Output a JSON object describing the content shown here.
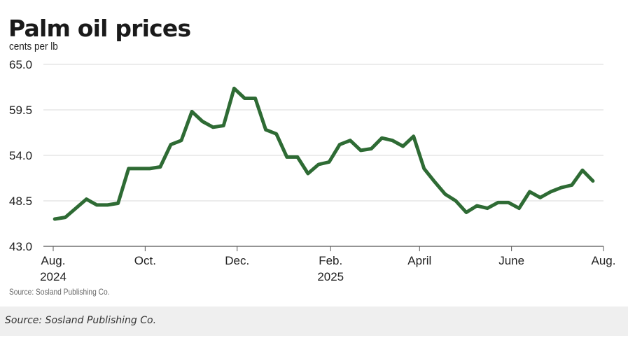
{
  "chart_data": {
    "type": "line",
    "title": "Palm oil prices",
    "ylabel": "cents per lb",
    "ylim": [
      43.0,
      65.0
    ],
    "yticks": [
      "65.0",
      "59.5",
      "54.0",
      "48.5",
      "43.0"
    ],
    "grid": true,
    "x_tick_labels": [
      {
        "line1": "Aug.",
        "line2": "2024"
      },
      {
        "line1": "Oct.",
        "line2": ""
      },
      {
        "line1": "Dec.",
        "line2": ""
      },
      {
        "line1": "Feb.",
        "line2": "2025"
      },
      {
        "line1": "April",
        "line2": ""
      },
      {
        "line1": "June",
        "line2": ""
      },
      {
        "line1": "Aug.",
        "line2": ""
      }
    ],
    "x_range": [
      "2024-08-01",
      "2025-08-01"
    ],
    "series": [
      {
        "color": "#2e6b34",
        "points": [
          [
            "2024-08-02",
            46.3
          ],
          [
            "2024-08-09",
            46.5
          ],
          [
            "2024-08-16",
            47.6
          ],
          [
            "2024-08-23",
            48.7
          ],
          [
            "2024-08-30",
            48.0
          ],
          [
            "2024-09-06",
            48.0
          ],
          [
            "2024-09-13",
            48.2
          ],
          [
            "2024-09-20",
            52.4
          ],
          [
            "2024-09-27",
            52.4
          ],
          [
            "2024-10-04",
            52.4
          ],
          [
            "2024-10-11",
            52.6
          ],
          [
            "2024-10-18",
            55.3
          ],
          [
            "2024-10-25",
            55.8
          ],
          [
            "2024-11-01",
            59.3
          ],
          [
            "2024-11-08",
            58.1
          ],
          [
            "2024-11-15",
            57.4
          ],
          [
            "2024-11-22",
            57.6
          ],
          [
            "2024-11-29",
            62.1
          ],
          [
            "2024-12-06",
            60.9
          ],
          [
            "2024-12-13",
            60.9
          ],
          [
            "2024-12-20",
            57.1
          ],
          [
            "2024-12-27",
            56.6
          ],
          [
            "2025-01-03",
            53.8
          ],
          [
            "2025-01-10",
            53.8
          ],
          [
            "2025-01-17",
            51.8
          ],
          [
            "2025-01-24",
            52.9
          ],
          [
            "2025-01-31",
            53.2
          ],
          [
            "2025-02-07",
            55.3
          ],
          [
            "2025-02-14",
            55.8
          ],
          [
            "2025-02-21",
            54.6
          ],
          [
            "2025-02-28",
            54.8
          ],
          [
            "2025-03-07",
            56.1
          ],
          [
            "2025-03-14",
            55.8
          ],
          [
            "2025-03-21",
            55.1
          ],
          [
            "2025-03-28",
            56.3
          ],
          [
            "2025-04-04",
            52.4
          ],
          [
            "2025-04-11",
            50.8
          ],
          [
            "2025-04-18",
            49.3
          ],
          [
            "2025-04-25",
            48.5
          ],
          [
            "2025-05-02",
            47.1
          ],
          [
            "2025-05-09",
            47.9
          ],
          [
            "2025-05-16",
            47.6
          ],
          [
            "2025-05-23",
            48.3
          ],
          [
            "2025-05-30",
            48.3
          ],
          [
            "2025-06-06",
            47.6
          ],
          [
            "2025-06-13",
            49.6
          ],
          [
            "2025-06-20",
            48.9
          ],
          [
            "2025-06-27",
            49.6
          ],
          [
            "2025-07-04",
            50.1
          ],
          [
            "2025-07-11",
            50.4
          ],
          [
            "2025-07-18",
            52.2
          ],
          [
            "2025-07-25",
            50.9
          ]
        ]
      }
    ]
  },
  "source_inner": "Source: Sosland Publishing Co.",
  "caption": "Source: Sosland Publishing Co."
}
